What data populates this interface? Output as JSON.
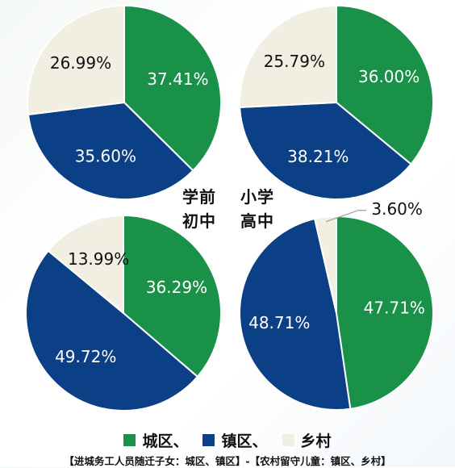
{
  "chart_data": [
    {
      "type": "pie",
      "title": "学前",
      "series": [
        {
          "name": "城区",
          "value": 37.41,
          "label": "37.41%"
        },
        {
          "name": "镇区",
          "value": 35.6,
          "label": "35.60%"
        },
        {
          "name": "乡村",
          "value": 26.99,
          "label": "26.99%"
        }
      ]
    },
    {
      "type": "pie",
      "title": "小学",
      "series": [
        {
          "name": "城区",
          "value": 36.0,
          "label": "36.00%"
        },
        {
          "name": "镇区",
          "value": 38.21,
          "label": "38.21%"
        },
        {
          "name": "乡村",
          "value": 25.79,
          "label": "25.79%"
        }
      ]
    },
    {
      "type": "pie",
      "title": "初中",
      "series": [
        {
          "name": "城区",
          "value": 36.29,
          "label": "36.29%"
        },
        {
          "name": "镇区",
          "value": 49.72,
          "label": "49.72%"
        },
        {
          "name": "乡村",
          "value": 13.99,
          "label": "13.99%"
        }
      ]
    },
    {
      "type": "pie",
      "title": "高中",
      "series": [
        {
          "name": "城区",
          "value": 47.71,
          "label": "47.71%"
        },
        {
          "name": "镇区",
          "value": 48.71,
          "label": "48.71%"
        },
        {
          "name": "乡村",
          "value": 3.6,
          "label": "3.60%"
        }
      ]
    }
  ],
  "colors": {
    "城区": "#1a9149",
    "镇区": "#0b3f86",
    "乡村": "#f1efe2"
  },
  "legend": [
    {
      "label": "城区、",
      "color": "#1a9149"
    },
    {
      "label": "镇区、",
      "color": "#0b3f86"
    },
    {
      "label": "乡村",
      "color": "#f1efe2"
    }
  ],
  "caption": "【进城务工人员随迁子女：城区、镇区】-【农村留守儿童：镇区、乡村】"
}
